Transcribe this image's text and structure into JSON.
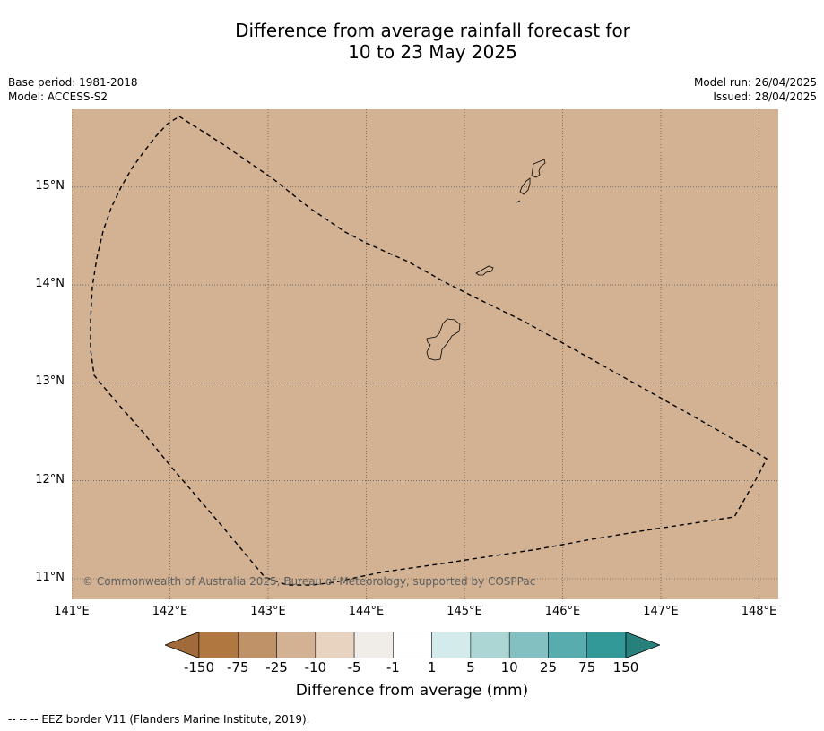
{
  "title_line1": "Difference from average rainfall forecast for",
  "title_line2": "10 to 23 May 2025",
  "meta": {
    "base_period": "Base period: 1981-2018",
    "model": "Model: ACCESS-S2",
    "model_run": "Model run: 26/04/2025",
    "issued": "Issued: 28/04/2025"
  },
  "map": {
    "fill_color": "#d2b293",
    "lon_ticks": [
      141,
      142,
      143,
      144,
      145,
      146,
      147,
      148
    ],
    "lat_ticks": [
      11,
      12,
      13,
      14,
      15
    ],
    "lon_labels": [
      "141°E",
      "142°E",
      "143°E",
      "144°E",
      "145°E",
      "146°E",
      "147°E",
      "148°E"
    ],
    "lat_labels": [
      "11°N",
      "12°N",
      "13°N",
      "14°N",
      "15°N"
    ],
    "copyright": "© Commonwealth of Australia 2025, Bureau of Meteorology, supported by COSPPac"
  },
  "colorbar": {
    "labels": [
      "-150",
      "-75",
      "-25",
      "-10",
      "-5",
      "-1",
      "1",
      "5",
      "10",
      "25",
      "75",
      "150"
    ],
    "colors": [
      "#a06a3a",
      "#b07840",
      "#c09268",
      "#d2b293",
      "#e8d2c0",
      "#f0ece8",
      "#ffffff",
      "#d4ebeb",
      "#acd6d4",
      "#82c0c2",
      "#58acad",
      "#339898",
      "#27807c"
    ],
    "title": "Difference from average (mm)"
  },
  "footnote": "--  --  -- EEZ border V11 (Flanders Marine Institute, 2019)."
}
